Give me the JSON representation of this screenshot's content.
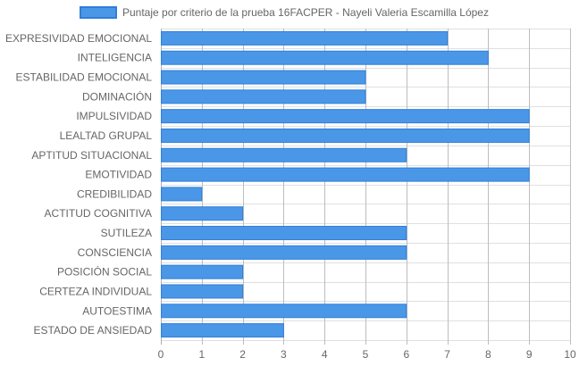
{
  "chart_data": {
    "type": "bar",
    "orientation": "horizontal",
    "legend": {
      "label": "Puntaje por criterio de la prueba 16FACPER - Nayeli Valeria Escamilla López",
      "placement": "top-center"
    },
    "categories": [
      "EXPRESIVIDAD EMOCIONAL",
      "INTELIGENCIA",
      "ESTABILIDAD EMOCIONAL",
      "DOMINACIÓN",
      "IMPULSIVIDAD",
      "LEALTAD GRUPAL",
      "APTITUD SITUACIONAL",
      "EMOTIVIDAD",
      "CREDIBILIDAD",
      "ACTITUD COGNITIVA",
      "SUTILEZA",
      "CONSCIENCIA",
      "POSICIÓN SOCIAL",
      "CERTEZA INDIVIDUAL",
      "AUTOESTIMA",
      "ESTADO DE ANSIEDAD"
    ],
    "series": [
      {
        "name": "Puntaje por criterio de la prueba 16FACPER - Nayeli Valeria Escamilla López",
        "values": [
          7,
          8,
          5,
          5,
          9,
          9,
          6,
          9,
          1,
          2,
          6,
          6,
          2,
          2,
          6,
          3
        ]
      }
    ],
    "xlim": [
      0,
      10
    ],
    "xticks": [
      "0",
      "1",
      "2",
      "3",
      "4",
      "5",
      "6",
      "7",
      "8",
      "9",
      "10"
    ],
    "grid": true,
    "colors": {
      "bar_fill": "#4a97e8",
      "bar_stroke": "#2f7fd8"
    }
  }
}
